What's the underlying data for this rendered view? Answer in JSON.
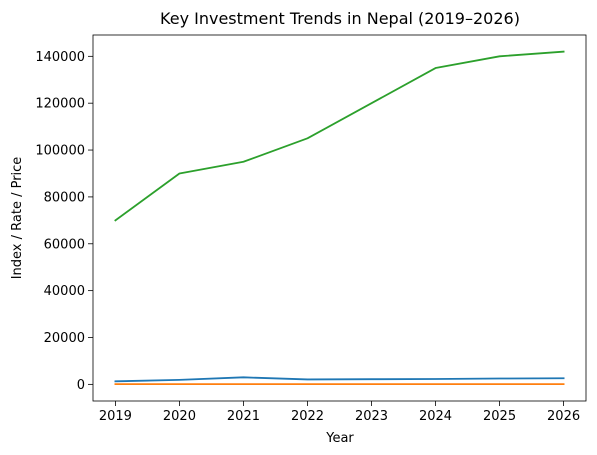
{
  "chart_data": {
    "type": "line",
    "title": "Key Investment Trends in Nepal (2019–2026)",
    "xlabel": "Year",
    "ylabel": "Index / Rate / Price",
    "x": [
      2019,
      2020,
      2021,
      2022,
      2023,
      2024,
      2025,
      2026
    ],
    "x_ticks": [
      "2019",
      "2020",
      "2021",
      "2022",
      "2023",
      "2024",
      "2025",
      "2026"
    ],
    "y_ticks": [
      "0",
      "20000",
      "40000",
      "60000",
      "80000",
      "100000",
      "120000",
      "140000"
    ],
    "xlim": [
      2018.65,
      2026.35
    ],
    "ylim": [
      -7100,
      149100
    ],
    "grid": false,
    "legend": "none",
    "series": [
      {
        "color": "#1f77b4",
        "values": [
          1300,
          1900,
          3000,
          2100,
          2200,
          2300,
          2500,
          2600
        ]
      },
      {
        "color": "#ff7f0e",
        "values": [
          100,
          100,
          100,
          100,
          100,
          100,
          100,
          100
        ]
      },
      {
        "color": "#2ca02c",
        "values": [
          70000,
          90000,
          95000,
          105000,
          120000,
          135000,
          140000,
          142000
        ]
      }
    ]
  }
}
